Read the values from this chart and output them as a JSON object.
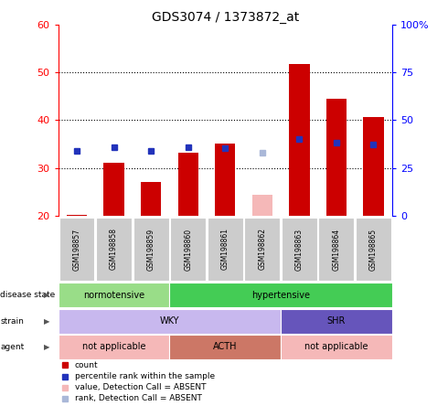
{
  "title": "GDS3074 / 1373872_at",
  "samples": [
    "GSM198857",
    "GSM198858",
    "GSM198859",
    "GSM198860",
    "GSM198861",
    "GSM198862",
    "GSM198863",
    "GSM198864",
    "GSM198865"
  ],
  "bar_values": [
    20.2,
    31.2,
    27.1,
    33.3,
    35.2,
    null,
    51.8,
    44.5,
    40.7
  ],
  "bar_absent": [
    null,
    null,
    null,
    null,
    null,
    24.5,
    null,
    null,
    null
  ],
  "rank_values": [
    34,
    36,
    34,
    36,
    35.5,
    null,
    40,
    38.5,
    37.5
  ],
  "rank_absent": [
    null,
    null,
    null,
    null,
    null,
    33,
    null,
    null,
    null
  ],
  "ylim_left": [
    20,
    60
  ],
  "ylim_right": [
    0,
    100
  ],
  "yticks_left": [
    20,
    30,
    40,
    50,
    60
  ],
  "ytick_labels_left": [
    "20",
    "30",
    "40",
    "50",
    "60"
  ],
  "yticks_right": [
    0,
    25,
    50,
    75,
    100
  ],
  "ytick_labels_right": [
    "0",
    "25",
    "50",
    "75",
    "100%"
  ],
  "bar_color": "#cc0000",
  "bar_absent_color": "#f5b8b8",
  "rank_color": "#2233bb",
  "rank_absent_color": "#aab8d8",
  "normotensive_color": "#99dd88",
  "hypertensive_color": "#44cc55",
  "wky_color": "#c8b8ee",
  "shr_color": "#6655bb",
  "na_color": "#f5b8b8",
  "acth_color": "#cc7766",
  "row_labels": [
    "disease state",
    "strain",
    "agent"
  ],
  "legend_items": [
    {
      "color": "#cc0000",
      "label": "count"
    },
    {
      "color": "#2233bb",
      "label": "percentile rank within the sample"
    },
    {
      "color": "#f5b8b8",
      "label": "value, Detection Call = ABSENT"
    },
    {
      "color": "#aab8d8",
      "label": "rank, Detection Call = ABSENT"
    }
  ],
  "background_color": "#ffffff",
  "bar_width": 0.55
}
